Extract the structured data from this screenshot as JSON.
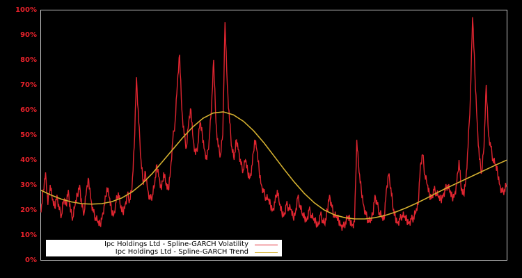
{
  "chart_data": {
    "type": "line",
    "title": "",
    "xlabel": "",
    "ylabel": "",
    "ylim": [
      0,
      100
    ],
    "y_ticks": [
      "0%",
      "10%",
      "20%",
      "30%",
      "40%",
      "50%",
      "60%",
      "70%",
      "80%",
      "90%",
      "100%"
    ],
    "grid": false,
    "legend_position": "lower-left",
    "series": [
      {
        "name": "Ipc Holdings Ltd - Spline-GARCH Volatility",
        "color": "#e02530",
        "values": [
          19,
          28,
          35,
          22,
          30,
          24,
          21,
          26,
          20,
          18,
          24,
          22,
          28,
          19,
          17,
          22,
          26,
          30,
          21,
          19,
          28,
          32,
          24,
          19,
          17,
          15,
          14,
          18,
          22,
          29,
          25,
          20,
          18,
          23,
          27,
          21,
          19,
          22,
          26,
          24,
          28,
          45,
          73,
          55,
          40,
          30,
          35,
          28,
          24,
          26,
          30,
          38,
          33,
          28,
          35,
          30,
          28,
          36,
          48,
          55,
          70,
          82,
          60,
          50,
          45,
          55,
          60,
          48,
          42,
          46,
          55,
          50,
          44,
          40,
          48,
          60,
          80,
          55,
          45,
          42,
          50,
          95,
          70,
          55,
          45,
          40,
          48,
          44,
          38,
          36,
          40,
          35,
          33,
          38,
          48,
          44,
          36,
          30,
          27,
          25,
          24,
          22,
          20,
          23,
          28,
          22,
          19,
          18,
          22,
          21,
          20,
          17,
          19,
          25,
          22,
          18,
          17,
          16,
          20,
          18,
          16,
          15,
          14,
          18,
          16,
          14,
          20,
          26,
          21,
          18,
          17,
          16,
          14,
          13,
          15,
          17,
          16,
          14,
          15,
          48,
          35,
          28,
          22,
          18,
          16,
          15,
          18,
          26,
          22,
          19,
          17,
          16,
          28,
          34,
          29,
          20,
          17,
          15,
          16,
          18,
          17,
          16,
          15,
          16,
          17,
          19,
          22,
          38,
          42,
          34,
          30,
          26,
          25,
          28,
          27,
          25,
          24,
          26,
          28,
          30,
          27,
          25,
          26,
          30,
          40,
          28,
          26,
          32,
          45,
          65,
          97,
          75,
          55,
          40,
          35,
          45,
          70,
          50,
          45,
          40,
          38,
          35,
          30,
          27,
          28,
          30
        ]
      },
      {
        "name": "Ipc Holdings Ltd - Spline-GARCH Trend",
        "color": "#d4b030",
        "values": [
          27.8,
          25.9,
          24.3,
          23.2,
          22.5,
          22.3,
          22.5,
          23.3,
          24.8,
          27.2,
          30.5,
          34.6,
          39.3,
          44.1,
          48.9,
          53.2,
          56.6,
          58.7,
          59.2,
          58.0,
          55.4,
          51.6,
          46.9,
          41.6,
          36.3,
          31.2,
          26.6,
          22.8,
          19.9,
          18.0,
          16.9,
          16.4,
          16.4,
          16.9,
          17.8,
          19.1,
          20.7,
          22.5,
          24.5,
          26.6,
          28.6,
          30.5,
          32.4,
          34.3,
          36.2,
          38.1,
          39.9
        ]
      }
    ]
  },
  "legend": {
    "items": [
      {
        "label": "Ipc Holdings Ltd - Spline-GARCH Volatility",
        "color": "#e02530"
      },
      {
        "label": "Ipc Holdings Ltd - Spline-GARCH Trend",
        "color": "#d4b030"
      }
    ]
  },
  "axis": {
    "y_labels": [
      "100%",
      "90%",
      "80%",
      "70%",
      "60%",
      "50%",
      "40%",
      "30%",
      "20%",
      "10%",
      "0%"
    ]
  },
  "colors": {
    "background": "#000000",
    "frame": "#c8c8c8",
    "tick_label": "#e8222b"
  }
}
